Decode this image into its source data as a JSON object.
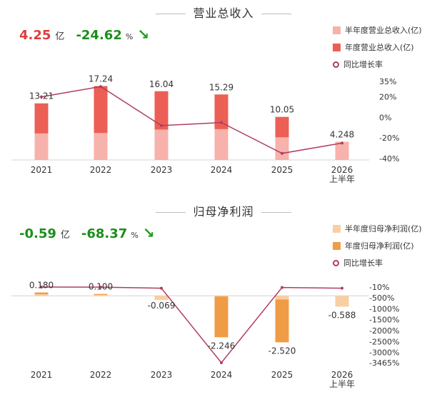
{
  "chart_data": [
    {
      "type": "bar",
      "title": "营业总收入",
      "kpi": {
        "value": "4.25",
        "unit": "亿",
        "change": "-24.62",
        "pct_unit": "%",
        "value_color": "#e03b3b",
        "change_color": "#1a8f1a"
      },
      "categories": [
        "2021",
        "2022",
        "2023",
        "2024",
        "2025",
        "2026\n上半年"
      ],
      "series": [
        {
          "name": "半年度营业总收入(亿)",
          "kind": "bar",
          "color": "#f7b2ab",
          "values": [
            6.2,
            6.3,
            7.1,
            7.2,
            5.3,
            4.248
          ]
        },
        {
          "name": "年度营业总收入(亿)",
          "kind": "bar",
          "color": "#ec5f55",
          "values": [
            13.21,
            17.24,
            16.04,
            15.29,
            10.05,
            null
          ]
        },
        {
          "name": "同比增长率",
          "kind": "line",
          "color": "#b03e5e",
          "values": [
            20,
            30,
            -8,
            -5,
            -35,
            -25
          ]
        }
      ],
      "data_labels": [
        "13.21",
        "17.24",
        "16.04",
        "15.29",
        "10.05",
        "4.248"
      ],
      "right_axis_ticks": [
        "35%",
        "20%",
        "0%",
        "-20%",
        "-40%"
      ],
      "right_axis_values": [
        35,
        20,
        0,
        -20,
        -40
      ],
      "ylim": [
        0,
        20
      ],
      "y2lim": [
        -40,
        35
      ],
      "legend_position": "top-right"
    },
    {
      "type": "bar",
      "title": "归母净利润",
      "kpi": {
        "value": "-0.59",
        "unit": "亿",
        "change": "-68.37",
        "pct_unit": "%",
        "value_color": "#1a8f1a",
        "change_color": "#1a8f1a"
      },
      "categories": [
        "2021",
        "2022",
        "2023",
        "2024",
        "2025",
        "2026\n上半年"
      ],
      "series": [
        {
          "name": "半年度归母净利润(亿)",
          "kind": "bar",
          "color": "#f8cfa3",
          "values": [
            0.09,
            0.05,
            -0.23,
            -0.01,
            -0.2,
            -0.588
          ]
        },
        {
          "name": "年度归母净利润(亿)",
          "kind": "bar",
          "color": "#f09c46",
          "values": [
            0.18,
            0.1,
            -0.069,
            -2.246,
            -2.52,
            null
          ]
        },
        {
          "name": "同比增长率",
          "kind": "line",
          "color": "#b03e5e",
          "values": [
            -10,
            -13,
            -63,
            -3465,
            -30,
            -63
          ]
        }
      ],
      "data_labels": [
        "0.180",
        "0.100",
        "-0.069",
        "-2.246",
        "-2.520",
        "-0.588"
      ],
      "right_axis_ticks": [
        "-10%",
        "-500%",
        "-1000%",
        "-1500%",
        "-2000%",
        "-2500%",
        "-3000%",
        "-3465%"
      ],
      "right_axis_values": [
        -10,
        -500,
        -1000,
        -1500,
        -2000,
        -2500,
        -3000,
        -3465
      ],
      "ylim": [
        -3.2,
        0.9
      ],
      "y2lim": [
        -3465,
        -10
      ],
      "legend_position": "top-right"
    }
  ]
}
